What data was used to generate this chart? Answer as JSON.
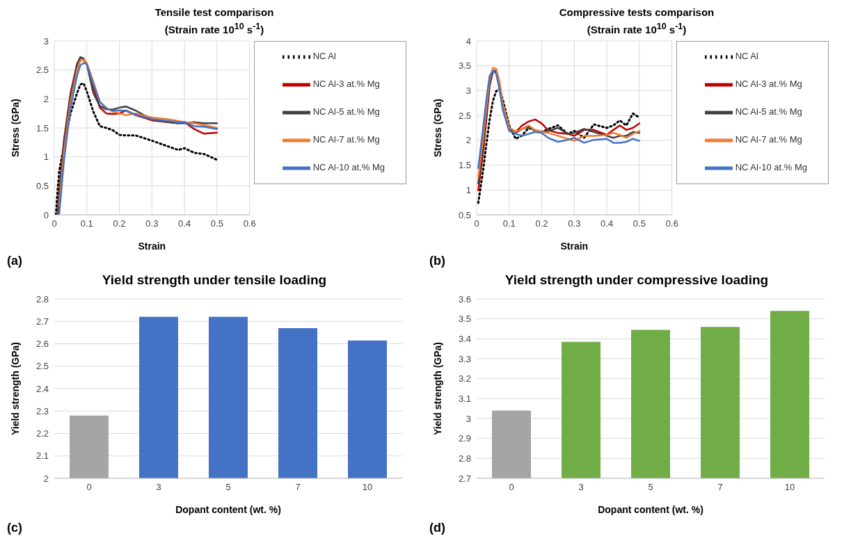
{
  "chart_data": [
    {
      "type": "line",
      "title": "Tensile test comparison",
      "subtitle": "(Strain rate 10$^{10}$ s$^{-1}$)",
      "xlabel": "Strain",
      "ylabel": "Stress (GPa)",
      "annotations": [
        "(a)"
      ],
      "x": [
        0.005,
        0.01,
        0.015,
        0.03,
        0.05,
        0.07,
        0.08,
        0.09,
        0.1,
        0.12,
        0.14,
        0.16,
        0.18,
        0.2,
        0.22,
        0.25,
        0.3,
        0.35,
        0.38,
        0.4,
        0.43,
        0.46,
        0.5
      ],
      "series": [
        {
          "name": "NC Al",
          "color": "#000000",
          "line_style": "dotted",
          "values": [
            0,
            0.4,
            0.75,
            1.2,
            1.75,
            2.1,
            2.25,
            2.27,
            2.13,
            1.78,
            1.53,
            1.5,
            1.46,
            1.38,
            1.37,
            1.37,
            1.28,
            1.18,
            1.12,
            1.15,
            1.07,
            1.05,
            0.95
          ]
        },
        {
          "name": "NC Al-3 at.% Mg",
          "color": "#c00000",
          "line_style": "solid",
          "values": [
            null,
            0,
            0.4,
            1.3,
            2.1,
            2.6,
            2.72,
            2.68,
            2.6,
            2.2,
            1.85,
            1.75,
            1.74,
            1.75,
            1.8,
            1.72,
            1.63,
            1.6,
            1.58,
            1.6,
            1.48,
            1.4,
            1.42
          ]
        },
        {
          "name": "NC Al-5 at.% Mg",
          "color": "#404040",
          "line_style": "solid",
          "values": [
            null,
            0,
            0.35,
            1.25,
            2.05,
            2.6,
            2.72,
            2.7,
            2.6,
            2.1,
            1.88,
            1.82,
            1.82,
            1.85,
            1.87,
            1.8,
            1.65,
            1.6,
            1.58,
            1.58,
            1.6,
            1.58,
            1.58
          ]
        },
        {
          "name": "NC Al-7 at.% Mg",
          "color": "#ed7d31",
          "line_style": "solid",
          "values": [
            null,
            null,
            0.15,
            1.1,
            1.95,
            2.5,
            2.66,
            2.68,
            2.62,
            2.3,
            1.95,
            1.85,
            1.78,
            1.75,
            1.72,
            1.75,
            1.68,
            1.65,
            1.62,
            1.6,
            1.58,
            1.55,
            1.5
          ]
        },
        {
          "name": "NC Al-10 at.% Mg",
          "color": "#4472c4",
          "line_style": "solid",
          "values": [
            null,
            null,
            0,
            0.95,
            1.85,
            2.4,
            2.58,
            2.62,
            2.6,
            2.25,
            1.95,
            1.83,
            1.8,
            1.8,
            1.8,
            1.73,
            1.65,
            1.62,
            1.6,
            1.6,
            1.53,
            1.52,
            1.48
          ]
        }
      ],
      "xlim": [
        0,
        0.6
      ],
      "xticks": [
        0,
        0.1,
        0.2,
        0.3,
        0.4,
        0.5,
        0.6
      ],
      "ylim": [
        0,
        3
      ],
      "yticks": [
        0,
        0.5,
        1,
        1.5,
        2,
        2.5,
        3
      ],
      "grid": true,
      "legend": "top right"
    },
    {
      "type": "line",
      "title": "Compressive tests comparison",
      "subtitle": "(Strain rate 10$^{10}$ s$^{-1}$)",
      "xlabel": "Strain",
      "ylabel": "Stress (GPa)",
      "annotations": [
        "(b)"
      ],
      "x": [
        0.005,
        0.02,
        0.03,
        0.04,
        0.05,
        0.06,
        0.07,
        0.08,
        0.1,
        0.12,
        0.14,
        0.16,
        0.18,
        0.2,
        0.22,
        0.25,
        0.28,
        0.3,
        0.33,
        0.36,
        0.4,
        0.42,
        0.44,
        0.46,
        0.48,
        0.5
      ],
      "series": [
        {
          "name": "NC Al",
          "color": "#000000",
          "line_style": "dotted",
          "values": [
            0.74,
            1.4,
            1.93,
            2.42,
            2.79,
            2.99,
            3.03,
            2.83,
            2.3,
            2.03,
            2.1,
            2.25,
            2.2,
            2.17,
            2.23,
            2.3,
            2.13,
            2.19,
            2.05,
            2.32,
            2.25,
            2.3,
            2.4,
            2.3,
            2.54,
            2.46
          ]
        },
        {
          "name": "NC Al-3 at.% Mg",
          "color": "#c00000",
          "line_style": "solid",
          "values": [
            0.99,
            1.77,
            2.42,
            3.1,
            3.38,
            3.4,
            3.15,
            2.7,
            2.26,
            2.17,
            2.3,
            2.38,
            2.42,
            2.34,
            2.2,
            2.15,
            2.13,
            2.09,
            2.21,
            2.21,
            2.11,
            2.21,
            2.3,
            2.21,
            2.25,
            2.34
          ]
        },
        {
          "name": "NC Al-5 at.% Mg",
          "color": "#404040",
          "line_style": "solid",
          "values": [
            1.13,
            1.93,
            2.54,
            3.15,
            3.4,
            3.4,
            3.17,
            2.74,
            2.26,
            2.15,
            2.23,
            2.27,
            2.2,
            2.17,
            2.19,
            2.25,
            2.13,
            2.15,
            2.23,
            2.17,
            2.09,
            2.05,
            2.09,
            2.09,
            2.17,
            2.15
          ]
        },
        {
          "name": "NC Al-7 at.% Mg",
          "color": "#ed7d31",
          "line_style": "solid",
          "values": [
            1.26,
            2.05,
            2.66,
            3.23,
            3.46,
            3.44,
            3.19,
            2.74,
            2.26,
            2.17,
            2.23,
            2.3,
            2.2,
            2.17,
            2.15,
            2.09,
            2.03,
            1.99,
            2.09,
            2.09,
            2.11,
            2.15,
            2.11,
            2.05,
            2.13,
            2.19
          ]
        },
        {
          "name": "NC Al-10 at.% Mg",
          "color": "#4472c4",
          "line_style": "solid",
          "values": [
            1.44,
            2.26,
            2.83,
            3.3,
            3.4,
            3.34,
            3.03,
            2.62,
            2.19,
            2.13,
            2.09,
            2.13,
            2.17,
            2.15,
            2.05,
            1.97,
            2.01,
            2.05,
            1.95,
            2.01,
            2.03,
            1.95,
            1.95,
            1.97,
            2.03,
            1.99
          ]
        }
      ],
      "xlim": [
        0,
        0.6
      ],
      "xticks": [
        0,
        0.1,
        0.2,
        0.3,
        0.4,
        0.5,
        0.6
      ],
      "ylim": [
        0.5,
        4
      ],
      "yticks": [
        0.5,
        1,
        1.5,
        2,
        2.5,
        3,
        3.5,
        4
      ],
      "grid": true,
      "legend": "top right"
    },
    {
      "type": "bar",
      "title": "Yield strength under tensile loading",
      "xlabel": "Dopant content (wt. %)",
      "ylabel": "Yield strength (GPa)",
      "annotations": [
        "(c)"
      ],
      "categories": [
        "0",
        "3",
        "5",
        "7",
        "10"
      ],
      "values": [
        2.28,
        2.72,
        2.72,
        2.67,
        2.615
      ],
      "colors": [
        "#a5a5a5",
        "#4472c4",
        "#4472c4",
        "#4472c4",
        "#4472c4"
      ],
      "ylim": [
        2,
        2.8
      ],
      "yticks": [
        2,
        2.1,
        2.2,
        2.3,
        2.4,
        2.5,
        2.6,
        2.7,
        2.8
      ],
      "grid": "y"
    },
    {
      "type": "bar",
      "title": "Yield strength under compressive loading",
      "xlabel": "Dopant content (wt. %)",
      "ylabel": "Yield strength (GPa)",
      "annotations": [
        "(d)"
      ],
      "categories": [
        "0",
        "3",
        "5",
        "7",
        "10"
      ],
      "values": [
        3.04,
        3.385,
        3.445,
        3.46,
        3.54
      ],
      "colors": [
        "#a5a5a5",
        "#70ad47",
        "#70ad47",
        "#70ad47",
        "#70ad47"
      ],
      "ylim": [
        2.7,
        3.6
      ],
      "yticks": [
        2.7,
        2.8,
        2.9,
        3,
        3.1,
        3.2,
        3.3,
        3.4,
        3.5,
        3.6
      ],
      "grid": "y"
    }
  ]
}
